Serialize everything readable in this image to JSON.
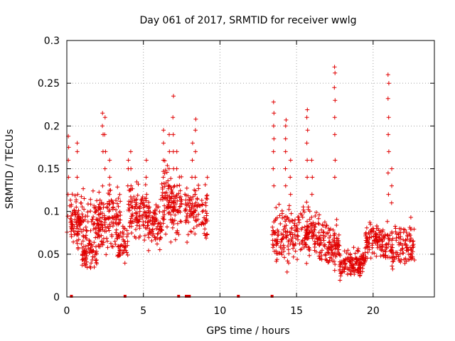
{
  "chart_data": {
    "type": "scatter",
    "title": "Day 061 of 2017, SRMTID for receiver wwlg",
    "xlabel": "GPS time / hours",
    "ylabel": "SRMTID / TECUs",
    "xlim": [
      0,
      24
    ],
    "ylim": [
      0,
      0.3
    ],
    "xticks": [
      0,
      5,
      10,
      15,
      20
    ],
    "xtick_labels": [
      "0",
      "5",
      "10",
      "15",
      "20"
    ],
    "yticks": [
      0,
      0.05,
      0.1,
      0.15,
      0.2,
      0.25,
      0.3
    ],
    "ytick_labels": [
      "0",
      "0.05",
      "0.1",
      "0.15",
      "0.2",
      "0.25",
      "0.3"
    ],
    "grid": true,
    "marker": "plus",
    "color": "#e00000",
    "series": [
      {
        "name": "SRMTID",
        "segments": [
          {
            "x0": 0.0,
            "x1": 2.2,
            "base": 0.09,
            "spread": 0.05,
            "n": 120
          },
          {
            "x0": 0.3,
            "x1": 1.0,
            "base": 0.08,
            "spread": 0.04,
            "n": 40
          },
          {
            "x0": 1.0,
            "x1": 2.0,
            "base": 0.05,
            "spread": 0.03,
            "n": 70
          },
          {
            "x0": 2.0,
            "x1": 3.5,
            "base": 0.09,
            "spread": 0.06,
            "n": 130
          },
          {
            "x0": 3.3,
            "x1": 4.0,
            "base": 0.06,
            "spread": 0.03,
            "n": 50
          },
          {
            "x0": 4.0,
            "x1": 5.3,
            "base": 0.1,
            "spread": 0.05,
            "n": 110
          },
          {
            "x0": 5.3,
            "x1": 6.2,
            "base": 0.085,
            "spread": 0.04,
            "n": 80
          },
          {
            "x0": 6.2,
            "x1": 7.5,
            "base": 0.11,
            "spread": 0.06,
            "n": 130
          },
          {
            "x0": 7.7,
            "x1": 9.2,
            "base": 0.1,
            "spread": 0.05,
            "n": 110
          },
          {
            "x0": 13.4,
            "x1": 15.0,
            "base": 0.075,
            "spread": 0.05,
            "n": 120
          },
          {
            "x0": 15.0,
            "x1": 16.5,
            "base": 0.075,
            "spread": 0.05,
            "n": 120
          },
          {
            "x0": 16.5,
            "x1": 17.8,
            "base": 0.06,
            "spread": 0.04,
            "n": 110
          },
          {
            "x0": 17.8,
            "x1": 19.5,
            "base": 0.04,
            "spread": 0.025,
            "n": 140
          },
          {
            "x0": 19.5,
            "x1": 21.0,
            "base": 0.065,
            "spread": 0.035,
            "n": 120
          },
          {
            "x0": 21.0,
            "x1": 22.7,
            "base": 0.06,
            "spread": 0.04,
            "n": 120
          }
        ],
        "spikes": [
          {
            "x": 0.1,
            "y": [
              0.12,
              0.14,
              0.16,
              0.175,
              0.188
            ]
          },
          {
            "x": 0.7,
            "y": [
              0.12,
              0.14,
              0.17,
              0.18
            ]
          },
          {
            "x": 2.35,
            "y": [
              0.17,
              0.19,
              0.2,
              0.215
            ]
          },
          {
            "x": 2.5,
            "y": [
              0.15,
              0.17,
              0.19,
              0.21
            ]
          },
          {
            "x": 2.8,
            "y": [
              0.12,
              0.14,
              0.16
            ]
          },
          {
            "x": 4.0,
            "y": [
              0.13,
              0.15,
              0.16
            ]
          },
          {
            "x": 4.2,
            "y": [
              0.13,
              0.15,
              0.17
            ]
          },
          {
            "x": 5.2,
            "y": [
              0.12,
              0.14,
              0.16
            ]
          },
          {
            "x": 6.3,
            "y": [
              0.14,
              0.16,
              0.18,
              0.195
            ]
          },
          {
            "x": 6.7,
            "y": [
              0.13,
              0.15,
              0.17,
              0.19
            ]
          },
          {
            "x": 6.95,
            "y": [
              0.15,
              0.17,
              0.19,
              0.21,
              0.235
            ]
          },
          {
            "x": 7.2,
            "y": [
              0.13,
              0.15,
              0.17
            ]
          },
          {
            "x": 8.2,
            "y": [
              0.14,
              0.16,
              0.18
            ]
          },
          {
            "x": 8.4,
            "y": [
              0.12,
              0.14,
              0.17,
              0.195,
              0.208
            ]
          },
          {
            "x": 13.5,
            "y": [
              0.13,
              0.15,
              0.17,
              0.185,
              0.2,
              0.215,
              0.228
            ]
          },
          {
            "x": 14.3,
            "y": [
              0.13,
              0.15,
              0.17,
              0.185,
              0.2,
              0.207
            ]
          },
          {
            "x": 14.6,
            "y": [
              0.12,
              0.14,
              0.16
            ]
          },
          {
            "x": 15.7,
            "y": [
              0.14,
              0.16,
              0.18,
              0.195,
              0.21,
              0.219
            ]
          },
          {
            "x": 16.0,
            "y": [
              0.12,
              0.14,
              0.16
            ]
          },
          {
            "x": 17.5,
            "y": [
              0.14,
              0.16,
              0.19,
              0.21,
              0.23,
              0.245,
              0.262,
              0.269
            ]
          },
          {
            "x": 21.0,
            "y": [
              0.12,
              0.145,
              0.17,
              0.19,
              0.21,
              0.232,
              0.25,
              0.26
            ]
          },
          {
            "x": 21.2,
            "y": [
              0.11,
              0.13,
              0.15
            ]
          }
        ]
      }
    ],
    "zero_markers": [
      0.3,
      3.8,
      7.3,
      7.8,
      7.9,
      8.0,
      11.2,
      13.4
    ]
  }
}
